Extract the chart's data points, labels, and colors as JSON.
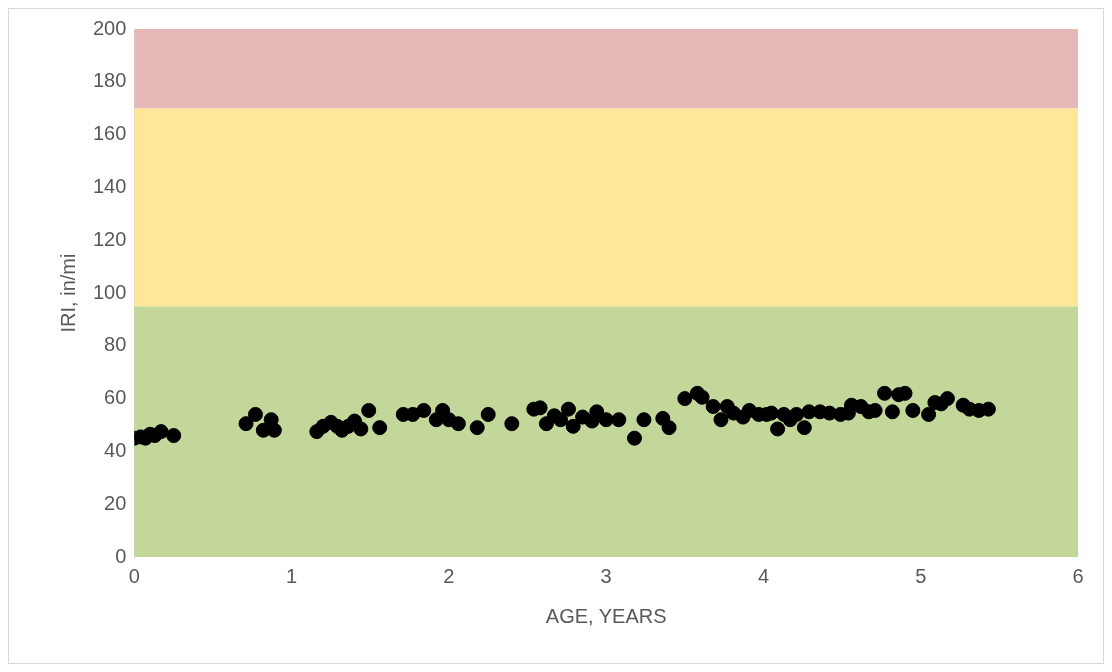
{
  "chart_data": {
    "type": "scatter",
    "xlabel": "AGE, YEARS",
    "ylabel": "IRI, in/mi",
    "xlim": [
      0,
      6
    ],
    "xticks": [
      0,
      1,
      2,
      3,
      4,
      5,
      6
    ],
    "ylim": [
      0,
      200
    ],
    "yticks": [
      0,
      20,
      40,
      60,
      80,
      100,
      120,
      140,
      160,
      180,
      200
    ],
    "grid": false,
    "legend": false,
    "marker": "circle",
    "bands": [
      {
        "axis": "y",
        "from": 0,
        "to": 95,
        "color": "#c4d79b"
      },
      {
        "axis": "y",
        "from": 95,
        "to": 170,
        "color": "#ffe699"
      },
      {
        "axis": "y",
        "from": 170,
        "to": 200,
        "color": "#e6b8b7"
      }
    ],
    "series": [
      {
        "color": "#000000",
        "x": [
          0,
          0.04,
          0.07,
          0.1,
          0.13,
          0.17,
          0.25,
          0.71,
          0.77,
          0.82,
          0.87,
          0.89,
          1.16,
          1.2,
          1.25,
          1.29,
          1.32,
          1.36,
          1.4,
          1.44,
          1.49,
          1.56,
          1.71,
          1.77,
          1.84,
          1.92,
          1.96,
          2.0,
          2.06,
          2.18,
          2.25,
          2.4,
          2.54,
          2.58,
          2.62,
          2.67,
          2.71,
          2.76,
          2.79,
          2.85,
          2.91,
          2.94,
          3.0,
          3.08,
          3.18,
          3.24,
          3.36,
          3.4,
          3.5,
          3.58,
          3.61,
          3.68,
          3.73,
          3.77,
          3.81,
          3.87,
          3.91,
          3.97,
          4.02,
          4.05,
          4.09,
          4.13,
          4.17,
          4.21,
          4.26,
          4.29,
          4.36,
          4.42,
          4.49,
          4.54,
          4.56,
          4.62,
          4.67,
          4.71,
          4.77,
          4.82,
          4.86,
          4.9,
          4.95,
          5.05,
          5.09,
          5.13,
          5.17,
          5.27,
          5.31,
          5.37,
          5.43
        ],
        "values": [
          45,
          45.5,
          45,
          46.5,
          46,
          47.5,
          46,
          50.5,
          54,
          48,
          52,
          48,
          47.5,
          49.5,
          51,
          49.5,
          48,
          49.5,
          51.5,
          48.5,
          55.5,
          49,
          54,
          54,
          55.5,
          52,
          55.5,
          52,
          50.5,
          49,
          54,
          50.5,
          56,
          56.5,
          50.5,
          53.5,
          52,
          56,
          49.5,
          53,
          51.5,
          55,
          52,
          52,
          45,
          52,
          52.5,
          49,
          60,
          62,
          60.5,
          57,
          52,
          57,
          54.5,
          53,
          55.5,
          54,
          54,
          54.5,
          48.5,
          54,
          52,
          54,
          49,
          55,
          55,
          54.5,
          54,
          54.5,
          57.5,
          57,
          55,
          55.5,
          62,
          55,
          61.5,
          62,
          55.5,
          54,
          58.5,
          58,
          60,
          57.5,
          56,
          55.5,
          56
        ]
      }
    ]
  }
}
